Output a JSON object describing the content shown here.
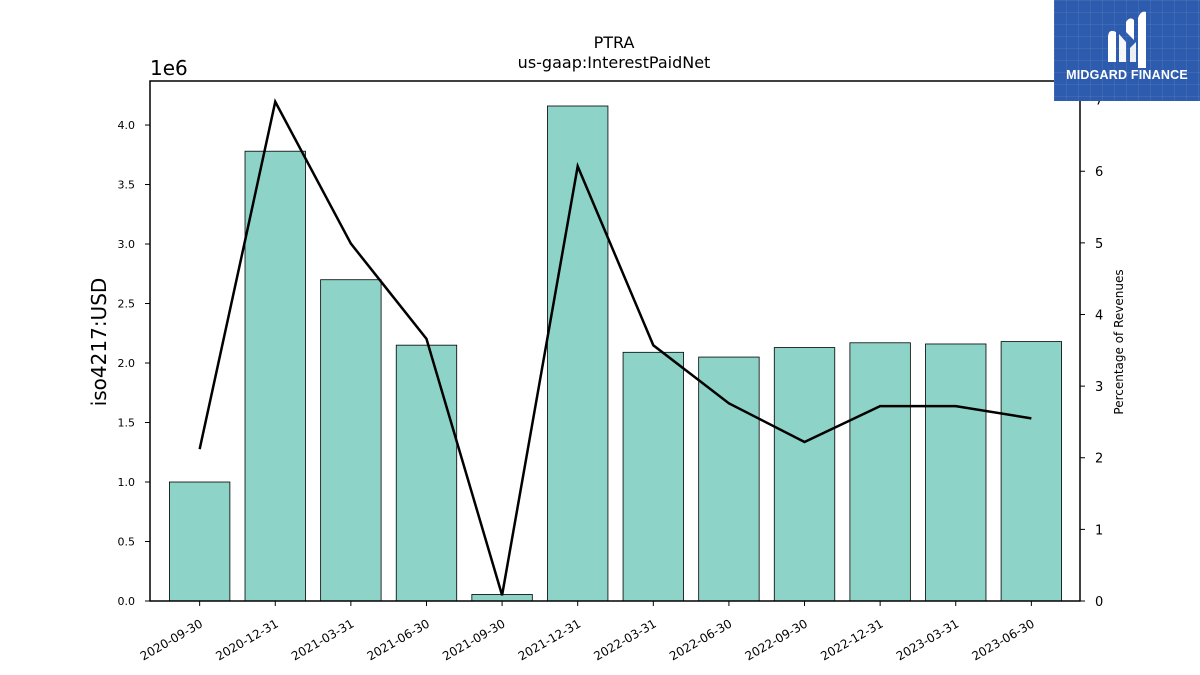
{
  "logo": {
    "brand": "MIDGARD FINANCE",
    "icon": "midgard-m-logo-icon",
    "color": "#2d5bad"
  },
  "chart_data": {
    "type": "bar",
    "title": "PTRA",
    "subtitle": "us-gaap:InterestPaidNet",
    "ylabel": "iso4217:USD",
    "y_offset_label": "1e6",
    "y2label": "Percentage of Revenues",
    "categories": [
      "2020-09-30",
      "2020-12-31",
      "2021-03-31",
      "2021-06-30",
      "2021-09-30",
      "2021-12-31",
      "2022-03-31",
      "2022-06-30",
      "2022-09-30",
      "2022-12-31",
      "2023-03-31",
      "2023-06-30"
    ],
    "series": [
      {
        "type": "bar",
        "axis": "left",
        "color": "#8dd3c7",
        "values": [
          1000000,
          3780000,
          2700000,
          2150000,
          55000,
          4160000,
          2090000,
          2050000,
          2130000,
          2170000,
          2160000,
          2180000
        ]
      },
      {
        "type": "line",
        "axis": "right",
        "color": "#000000",
        "values": [
          2.12,
          6.97,
          4.99,
          3.66,
          0.08,
          6.07,
          3.57,
          2.76,
          2.22,
          2.72,
          2.72,
          2.55
        ]
      }
    ],
    "ylim": [
      0,
      4370000
    ],
    "y_ticks": [
      0,
      500000,
      1000000,
      1500000,
      2000000,
      2500000,
      3000000,
      3500000,
      4000000
    ],
    "y_tick_labels": [
      "0.0",
      "0.5",
      "1.0",
      "1.5",
      "2.0",
      "2.5",
      "3.0",
      "3.5",
      "4.0"
    ],
    "y2lim": [
      0,
      7.26
    ],
    "y2_ticks": [
      0,
      1,
      2,
      3,
      4,
      5,
      6,
      7
    ],
    "y2_tick_labels": [
      "0",
      "1",
      "2",
      "3",
      "4",
      "5",
      "6",
      "7"
    ],
    "grid": false,
    "legend": "none"
  }
}
